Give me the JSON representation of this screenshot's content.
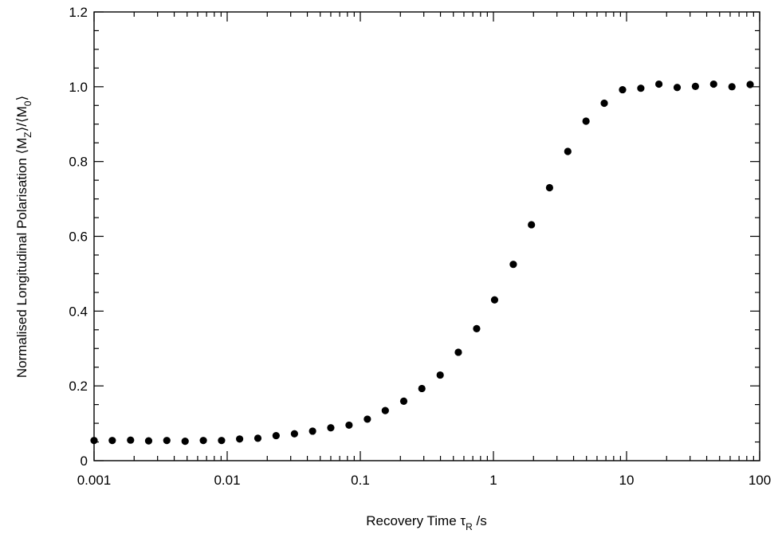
{
  "chart_data": {
    "type": "scatter",
    "title": "",
    "xlabel": {
      "text": "Recovery Time ",
      "symbol": "τ",
      "sub": "R",
      "unit": " /s"
    },
    "ylabel": {
      "prefix": "Normalised Longitudinal Polarisation ⟨M",
      "sub1": "Z",
      "mid": "⟩/⟨M",
      "sub2": "0",
      "suffix": "⟩"
    },
    "x_scale": "log",
    "xlim": [
      0.001,
      100
    ],
    "ylim": [
      0,
      1.2
    ],
    "x_ticks": [
      0.001,
      0.01,
      0.1,
      1,
      10,
      100
    ],
    "x_tick_labels": [
      "0.001",
      "0.01",
      "0.1",
      "1",
      "10",
      "100"
    ],
    "y_ticks": [
      0,
      0.2,
      0.4,
      0.6,
      0.8,
      1.0,
      1.2
    ],
    "y_tick_labels": [
      "0",
      "0.2",
      "0.4",
      "0.6",
      "0.8",
      "1.0",
      "1.2"
    ],
    "grid": false,
    "marker_color": "#000000",
    "points": [
      {
        "x": 0.001,
        "y": 0.054
      },
      {
        "x": 0.00137,
        "y": 0.054
      },
      {
        "x": 0.00188,
        "y": 0.055
      },
      {
        "x": 0.00257,
        "y": 0.053
      },
      {
        "x": 0.00352,
        "y": 0.054
      },
      {
        "x": 0.00483,
        "y": 0.052
      },
      {
        "x": 0.00662,
        "y": 0.054
      },
      {
        "x": 0.00907,
        "y": 0.054
      },
      {
        "x": 0.0124,
        "y": 0.058
      },
      {
        "x": 0.017,
        "y": 0.06
      },
      {
        "x": 0.0233,
        "y": 0.067
      },
      {
        "x": 0.032,
        "y": 0.072
      },
      {
        "x": 0.0438,
        "y": 0.079
      },
      {
        "x": 0.06,
        "y": 0.088
      },
      {
        "x": 0.0823,
        "y": 0.095
      },
      {
        "x": 0.113,
        "y": 0.111
      },
      {
        "x": 0.154,
        "y": 0.134
      },
      {
        "x": 0.212,
        "y": 0.159
      },
      {
        "x": 0.29,
        "y": 0.193
      },
      {
        "x": 0.398,
        "y": 0.229
      },
      {
        "x": 0.545,
        "y": 0.29
      },
      {
        "x": 0.748,
        "y": 0.353
      },
      {
        "x": 1.02,
        "y": 0.43
      },
      {
        "x": 1.41,
        "y": 0.525
      },
      {
        "x": 1.93,
        "y": 0.631
      },
      {
        "x": 2.64,
        "y": 0.73
      },
      {
        "x": 3.62,
        "y": 0.827
      },
      {
        "x": 4.96,
        "y": 0.908
      },
      {
        "x": 6.8,
        "y": 0.956
      },
      {
        "x": 9.33,
        "y": 0.992
      },
      {
        "x": 12.8,
        "y": 0.996
      },
      {
        "x": 17.5,
        "y": 1.007
      },
      {
        "x": 24.0,
        "y": 0.998
      },
      {
        "x": 32.9,
        "y": 1.001
      },
      {
        "x": 45.1,
        "y": 1.007
      },
      {
        "x": 61.9,
        "y": 1.0
      },
      {
        "x": 84.8,
        "y": 1.006
      }
    ]
  }
}
